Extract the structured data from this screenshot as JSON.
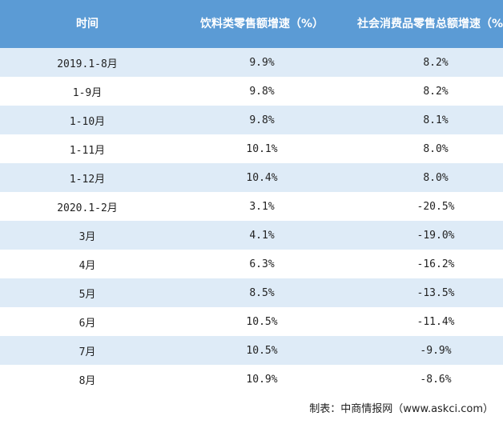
{
  "table": {
    "header": [
      "时间",
      "饮料类零售额增速（%）",
      "社会消费品零售总额增速（%）"
    ],
    "rows": [
      [
        "2019.1-8月",
        "9.9%",
        "8.2%"
      ],
      [
        "1-9月",
        "9.8%",
        "8.2%"
      ],
      [
        "1-10月",
        "9.8%",
        "8.1%"
      ],
      [
        "1-11月",
        "10.1%",
        "8.0%"
      ],
      [
        "1-12月",
        "10.4%",
        "8.0%"
      ],
      [
        "2020.1-2月",
        "3.1%",
        "-20.5%"
      ],
      [
        "3月",
        "4.1%",
        "-19.0%"
      ],
      [
        "4月",
        "6.3%",
        "-16.2%"
      ],
      [
        "5月",
        "8.5%",
        "-13.5%"
      ],
      [
        "6月",
        "10.5%",
        "-11.4%"
      ],
      [
        "7月",
        "10.5%",
        "-9.9%"
      ],
      [
        "8月",
        "10.9%",
        "-8.6%"
      ]
    ]
  },
  "footer": {
    "source": "制表：中商情报网（www.askci.com）"
  }
}
